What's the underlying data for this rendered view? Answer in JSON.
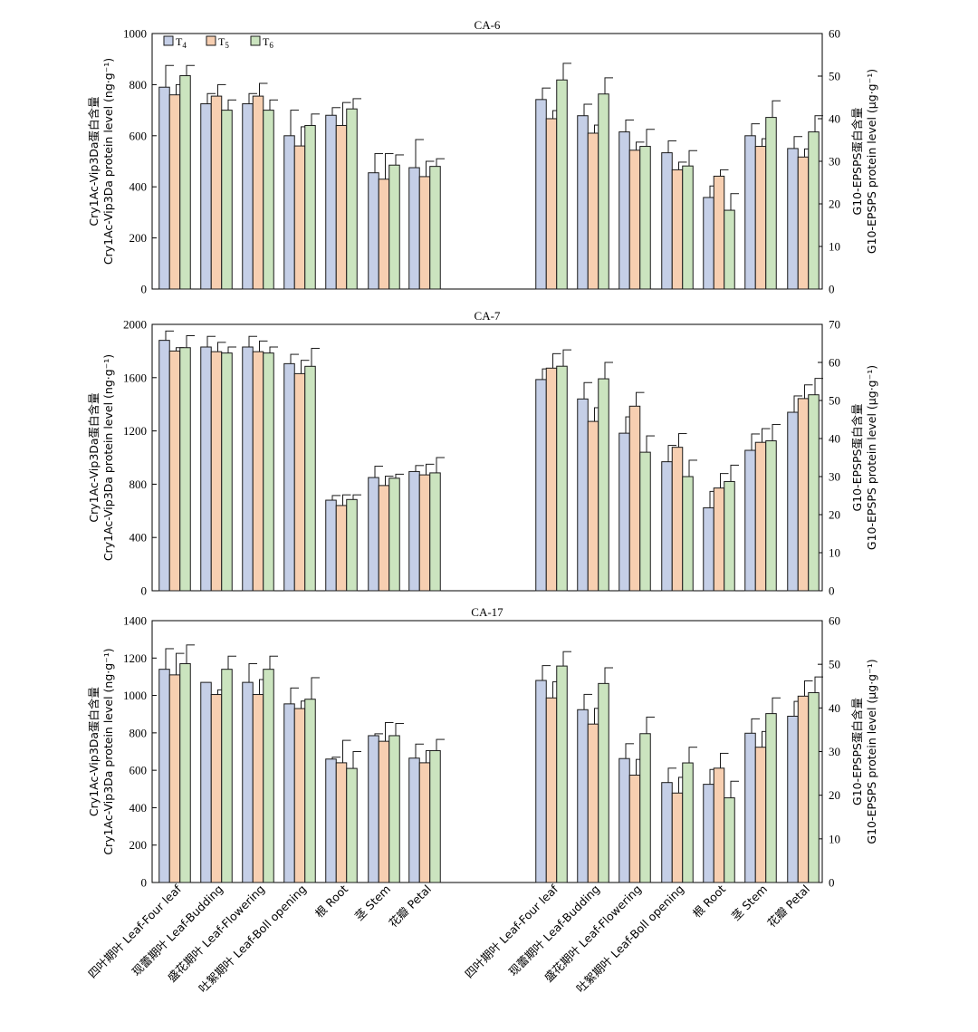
{
  "chart_data": [
    {
      "type": "bar",
      "title": "CA-6",
      "ylabel_left": [
        "Cry1Ac-Vip3Da蛋白含量",
        "Cry1Ac-Vip3Da protein level (ng·g⁻¹)"
      ],
      "ylabel_right": [
        "G10-EPSPS蛋白含量",
        "G10-EPSPS protein level (μg·g⁻¹)"
      ],
      "ylim_left": [
        0,
        1000
      ],
      "yticks_left": [
        0,
        200,
        400,
        600,
        800,
        1000
      ],
      "ylim_right": [
        0,
        60
      ],
      "yticks_right": [
        0,
        10,
        20,
        30,
        40,
        50,
        60
      ],
      "left_group": {
        "categories": [
          "四叶期叶 Leaf-Four leaf",
          "现蕾期叶 Leaf-Budding",
          "盛花期叶 Leaf-Flowering",
          "吐絮期叶 Leaf-Boll opening",
          "根 Root",
          "茎 Stem",
          "花瓣 Petal"
        ],
        "series": [
          {
            "name": "T4",
            "values": [
              790,
              725,
              725,
              600,
              680,
              455,
              475
            ],
            "errors": [
              85,
              40,
              40,
              100,
              30,
              75,
              110
            ]
          },
          {
            "name": "T5",
            "values": [
              760,
              755,
              755,
              560,
              640,
              430,
              440
            ],
            "errors": [
              40,
              45,
              50,
              75,
              90,
              100,
              60
            ]
          },
          {
            "name": "T6",
            "values": [
              835,
              700,
              700,
              640,
              705,
              485,
              480
            ],
            "errors": [
              40,
              40,
              40,
              45,
              40,
              40,
              30
            ]
          }
        ]
      },
      "right_group": {
        "categories": [
          "四叶期叶 Leaf-Four leaf",
          "现蕾期叶 Leaf-Budding",
          "盛花期叶 Leaf-Flowering",
          "吐絮期叶 Leaf-Boll opening",
          "根 Root",
          "茎 Stem",
          "花瓣 Petal"
        ],
        "series": [
          {
            "name": "T4",
            "values": [
              44.5,
              40.7,
              36.9,
              32.0,
              21.5,
              36.0,
              33.0
            ],
            "errors": [
              2.7,
              2.7,
              2.8,
              2.8,
              2.7,
              2.8,
              2.8
            ]
          },
          {
            "name": "T5",
            "values": [
              40.0,
              36.6,
              32.6,
              28.0,
              26.5,
              33.5,
              31.0
            ],
            "errors": [
              1.9,
              1.9,
              1.9,
              1.8,
              1.5,
              1.8,
              1.9
            ]
          },
          {
            "name": "T6",
            "values": [
              49.1,
              45.8,
              33.5,
              28.9,
              18.5,
              40.3,
              36.9
            ],
            "errors": [
              3.9,
              3.8,
              4.0,
              3.6,
              3.9,
              3.9,
              3.8
            ]
          }
        ]
      }
    },
    {
      "type": "bar",
      "title": "CA-7",
      "ylabel_left": [
        "Cry1Ac-Vip3Da蛋白含量",
        "Cry1Ac-Vip3Da protein level (ng·g⁻¹)"
      ],
      "ylabel_right": [
        "G10-EPSPS蛋白含量",
        "G10-EPSPS protein level (μg·g⁻¹)"
      ],
      "ylim_left": [
        0,
        2000
      ],
      "yticks_left": [
        0,
        400,
        800,
        1200,
        1600,
        2000
      ],
      "ylim_right": [
        0,
        70
      ],
      "yticks_right": [
        0,
        10,
        20,
        30,
        40,
        50,
        60,
        70
      ],
      "left_group": {
        "categories": [
          "四叶期叶 Leaf-Four leaf",
          "现蕾期叶 Leaf-Budding",
          "盛花期叶 Leaf-Flowering",
          "吐絮期叶 Leaf-Boll opening",
          "根 Root",
          "茎 Stem",
          "花瓣 Petal"
        ],
        "series": [
          {
            "name": "T4",
            "values": [
              1880,
              1830,
              1830,
              1705,
              680,
              850,
              895
            ],
            "errors": [
              70,
              80,
              80,
              70,
              35,
              85,
              45
            ]
          },
          {
            "name": "T5",
            "values": [
              1800,
              1795,
              1795,
              1630,
              640,
              790,
              870
            ],
            "errors": [
              25,
              70,
              80,
              100,
              80,
              70,
              80
            ]
          },
          {
            "name": "T6",
            "values": [
              1825,
              1785,
              1785,
              1685,
              685,
              845,
              885
            ],
            "errors": [
              90,
              45,
              45,
              135,
              35,
              30,
              115
            ]
          }
        ]
      },
      "right_group": {
        "categories": [
          "四叶期叶 Leaf-Four leaf",
          "现蕾期叶 Leaf-Budding",
          "盛花期叶 Leaf-Flowering",
          "吐絮期叶 Leaf-Boll opening",
          "根 Root",
          "茎 Stem",
          "花瓣 Petal"
        ],
        "series": [
          {
            "name": "T4",
            "values": [
              55.5,
              50.4,
              41.4,
              33.9,
              21.8,
              36.9,
              46.9
            ],
            "errors": [
              2.8,
              4.3,
              4.3,
              4.3,
              4.3,
              4.3,
              4.3
            ]
          },
          {
            "name": "T5",
            "values": [
              58.5,
              44.5,
              48.5,
              37.7,
              27.0,
              39.0,
              50.5
            ],
            "errors": [
              3.8,
              3.6,
              3.6,
              3.6,
              3.8,
              3.6,
              3.6
            ]
          },
          {
            "name": "T6",
            "values": [
              59.0,
              55.7,
              36.4,
              30.0,
              28.7,
              39.4,
              51.5
            ],
            "errors": [
              4.3,
              4.3,
              4.3,
              4.3,
              4.3,
              4.3,
              4.3
            ]
          }
        ]
      }
    },
    {
      "type": "bar",
      "title": "CA-17",
      "ylabel_left": [
        "Cry1Ac-Vip3Da蛋白含量",
        "Cry1Ac-Vip3Da protein level (ng·g⁻¹)"
      ],
      "ylabel_right": [
        "G10-EPSPS蛋白含量",
        "G10-EPSPS protein level (μg·g⁻¹)"
      ],
      "ylim_left": [
        0,
        1400
      ],
      "yticks_left": [
        0,
        200,
        400,
        600,
        800,
        1000,
        1200,
        1400
      ],
      "ylim_right": [
        0,
        60
      ],
      "yticks_right": [
        0,
        10,
        20,
        30,
        40,
        50,
        60
      ],
      "left_group": {
        "categories": [
          "四叶期叶 Leaf-Four leaf",
          "现蕾期叶 Leaf-Budding",
          "盛花期叶 Leaf-Flowering",
          "吐絮期叶 Leaf-Boll opening",
          "根 Root",
          "茎 Stem",
          "花瓣 Petal"
        ],
        "series": [
          {
            "name": "T4",
            "values": [
              1140,
              1070,
              1070,
              955,
              660,
              785,
              665
            ],
            "errors": [
              110,
              0,
              100,
              85,
              10,
              10,
              75
            ]
          },
          {
            "name": "T5",
            "values": [
              1110,
              1005,
              1005,
              930,
              640,
              755,
              640
            ],
            "errors": [
              115,
              25,
              80,
              40,
              120,
              100,
              65
            ]
          },
          {
            "name": "T6",
            "values": [
              1170,
              1140,
              1140,
              980,
              610,
              785,
              705
            ],
            "errors": [
              100,
              70,
              70,
              115,
              90,
              65,
              60
            ]
          }
        ]
      },
      "right_group": {
        "categories": [
          "四叶期叶 Leaf-Four leaf",
          "现蕾期叶 Leaf-Budding",
          "盛花期叶 Leaf-Flowering",
          "吐絮期叶 Leaf-Boll opening",
          "根 Root",
          "茎 Stem",
          "花瓣 Petal"
        ],
        "series": [
          {
            "name": "T4",
            "values": [
              46.3,
              39.6,
              28.4,
              22.9,
              22.5,
              34.2,
              38.1
            ],
            "errors": [
              3.4,
              3.5,
              3.4,
              3.3,
              3.4,
              3.3,
              3.4
            ]
          },
          {
            "name": "T5",
            "values": [
              42.3,
              36.3,
              24.6,
              20.5,
              26.2,
              31.0,
              42.7
            ],
            "errors": [
              3.7,
              3.6,
              3.6,
              3.6,
              3.4,
              3.6,
              3.5
            ]
          },
          {
            "name": "T6",
            "values": [
              49.6,
              45.6,
              34.1,
              27.4,
              19.4,
              38.7,
              43.5
            ],
            "errors": [
              3.3,
              3.6,
              3.8,
              3.6,
              3.8,
              3.6,
              3.6
            ]
          }
        ]
      }
    }
  ],
  "legend": [
    {
      "name": "T4",
      "base": "T",
      "sub": "4",
      "color": "#c5cfe7"
    },
    {
      "name": "T5",
      "base": "T",
      "sub": "5",
      "color": "#f7cfb1"
    },
    {
      "name": "T6",
      "base": "T",
      "sub": "6",
      "color": "#cbe4bf"
    }
  ],
  "x_categories": [
    "四叶期叶 Leaf-Four leaf",
    "现蕾期叶 Leaf-Budding",
    "盛花期叶 Leaf-Flowering",
    "吐絮期叶 Leaf-Boll opening",
    "根 Root",
    "茎 Stem",
    "花瓣 Petal"
  ]
}
